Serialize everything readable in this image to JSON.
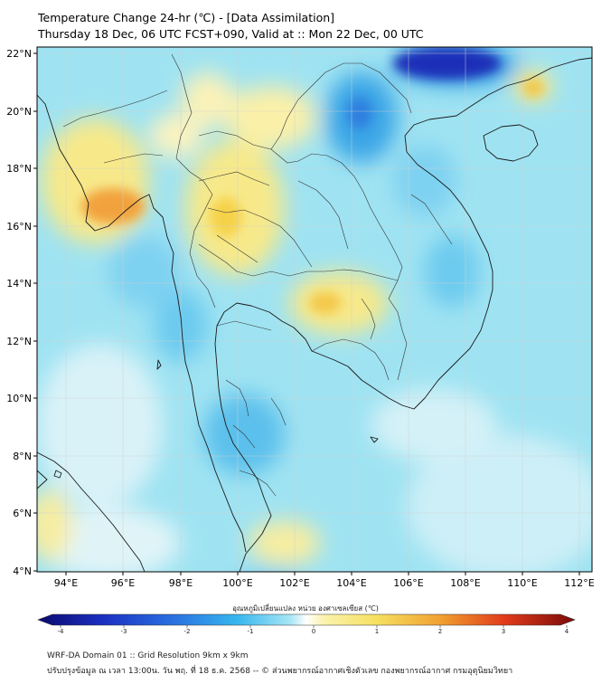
{
  "header": {
    "title_line1": "Temperature Change 24-hr (℃) - [Data Assimilation]",
    "title_line2": "Thursday 18 Dec, 06 UTC FCST+090, Valid at :: Mon 22 Dec, 00 UTC"
  },
  "map": {
    "lat_labels": [
      "22°N",
      "20°N",
      "18°N",
      "16°N",
      "14°N",
      "12°N",
      "10°N",
      "8°N",
      "6°N",
      "4°N"
    ],
    "lon_labels": [
      "94°E",
      "96°E",
      "98°E",
      "100°E",
      "102°E",
      "104°E",
      "106°E",
      "108°E",
      "110°E",
      "112°E"
    ]
  },
  "colorbar": {
    "title": "อุณหภูมิเปลี่ยนแปลง หน่วย องศาเซลเซียส (℃)",
    "ticks": [
      "-4",
      "-3",
      "-2",
      "-1",
      "0",
      "1",
      "2",
      "3",
      "4"
    ],
    "min": -4,
    "max": 4
  },
  "footer": {
    "line1": "WRF-DA Domain 01 :: Grid Resolution 9km x 9km",
    "line2": "ปรับปรุงข้อมูล ณ เวลา 13:00น. วัน พฤ. ที่ 18 ธ.ค. 2568 -- © ส่วนพยากรณ์อากาศเชิงตัวเลข กองพยากรณ์อากาศ กรมอุตุนิยมวิทยา"
  },
  "colors": {
    "base_field": "#9fe3f2",
    "warm_yellow": "#f7e98a",
    "warm_orange": "#f2a23c",
    "cool_blue": "#3aa6e6",
    "deep_blue": "#1a2fb8",
    "coastline": "#1a1a1a"
  }
}
